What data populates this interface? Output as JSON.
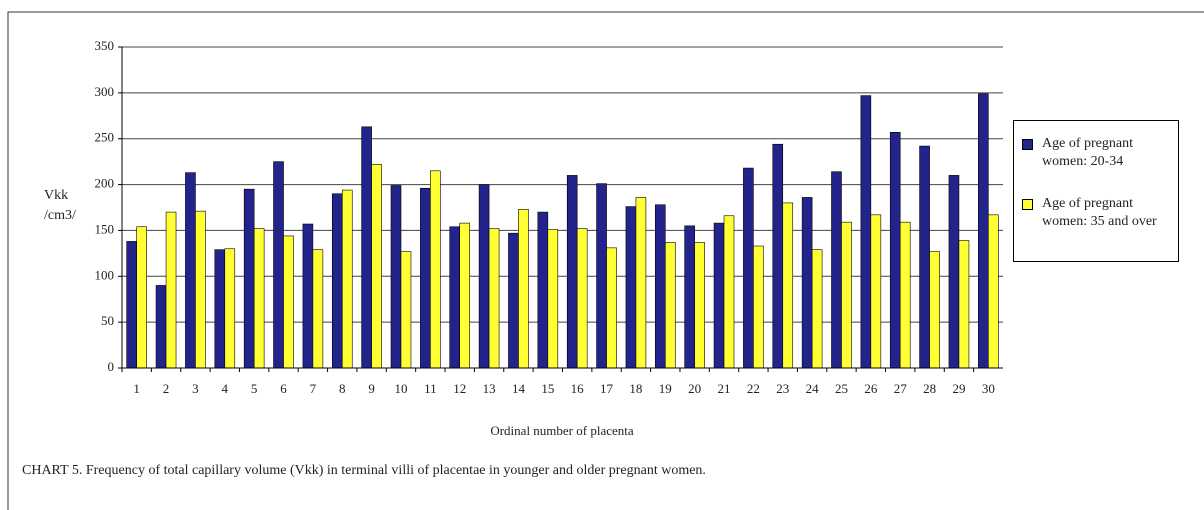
{
  "chart_data": {
    "type": "bar",
    "caption": "CHART 5.  Frequency of total capillary volume (Vkk) in terminal villi of placentae in younger and older pregnant women.",
    "x_label": "Ordinal number of placenta",
    "y_label": "Vkk /cm3/",
    "categories": [
      "1",
      "2",
      "3",
      "4",
      "5",
      "6",
      "7",
      "8",
      "9",
      "10",
      "11",
      "12",
      "13",
      "14",
      "15",
      "16",
      "17",
      "18",
      "19",
      "20",
      "21",
      "22",
      "23",
      "24",
      "25",
      "26",
      "27",
      "28",
      "29",
      "30"
    ],
    "series": [
      {
        "name": "Age of pregnant women: 20-34",
        "color": "#23238c",
        "values": [
          138,
          90,
          213,
          129,
          195,
          225,
          157,
          190,
          263,
          199,
          196,
          154,
          200,
          147,
          170,
          210,
          201,
          176,
          178,
          155,
          158,
          218,
          244,
          186,
          214,
          297,
          257,
          242,
          210,
          299
        ]
      },
      {
        "name": "Age of pregnant women: 35 and over",
        "color": "#ffff33",
        "values": [
          154,
          170,
          171,
          130,
          152,
          144,
          129,
          194,
          222,
          127,
          215,
          158,
          152,
          173,
          151,
          152,
          131,
          186,
          137,
          137,
          166,
          133,
          180,
          129,
          159,
          167,
          159,
          127,
          139,
          167
        ]
      }
    ],
    "ylim": [
      0,
      350
    ],
    "yticks": [
      0,
      50,
      100,
      150,
      200,
      250,
      300,
      350
    ],
    "grid": true,
    "legend": "right"
  }
}
